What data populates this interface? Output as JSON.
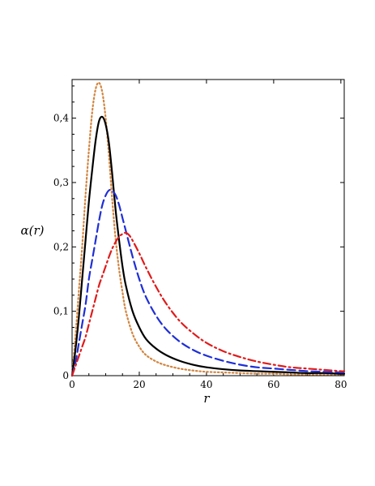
{
  "chart_data": {
    "type": "line",
    "xlabel": "r",
    "ylabel": "α(r)",
    "xlim": [
      0,
      81
    ],
    "ylim": [
      0,
      0.46
    ],
    "grid": false,
    "legend": "none",
    "x_ticks": [
      {
        "value": 0,
        "label": "0"
      },
      {
        "value": 20,
        "label": "20"
      },
      {
        "value": 40,
        "label": "40"
      },
      {
        "value": 60,
        "label": "60"
      },
      {
        "value": 80,
        "label": "80"
      }
    ],
    "y_ticks": [
      {
        "value": 0,
        "label": "0"
      },
      {
        "value": 0.1,
        "label": "0,1"
      },
      {
        "value": 0.2,
        "label": "0,2"
      },
      {
        "value": 0.3,
        "label": "0,3"
      },
      {
        "value": 0.4,
        "label": "0,4"
      }
    ],
    "series": [
      {
        "color": "#d2853f",
        "style": "dotted",
        "x": [
          0,
          1,
          2,
          3,
          4,
          5,
          6,
          7,
          8,
          9,
          10,
          11,
          12,
          13,
          14,
          15,
          16,
          18,
          20,
          22,
          25,
          28,
          32,
          36,
          40,
          45,
          50,
          55,
          60,
          65,
          70,
          75,
          80,
          81
        ],
        "y": [
          0,
          0.06,
          0.13,
          0.2,
          0.28,
          0.35,
          0.41,
          0.445,
          0.455,
          0.44,
          0.4,
          0.34,
          0.27,
          0.21,
          0.165,
          0.13,
          0.1,
          0.065,
          0.045,
          0.032,
          0.022,
          0.016,
          0.011,
          0.008,
          0.006,
          0.005,
          0.004,
          0.003,
          0.003,
          0.002,
          0.002,
          0.002,
          0.002,
          0.002
        ]
      },
      {
        "color": "#000000",
        "style": "solid",
        "x": [
          0,
          1,
          2,
          3,
          4,
          5,
          6,
          7,
          8,
          9,
          10,
          11,
          12,
          13,
          14,
          15,
          16,
          18,
          20,
          22,
          25,
          28,
          32,
          36,
          40,
          45,
          50,
          55,
          60,
          65,
          70,
          75,
          80,
          81
        ],
        "y": [
          0,
          0.04,
          0.09,
          0.15,
          0.21,
          0.27,
          0.32,
          0.365,
          0.395,
          0.402,
          0.39,
          0.36,
          0.31,
          0.255,
          0.21,
          0.17,
          0.14,
          0.1,
          0.075,
          0.057,
          0.042,
          0.032,
          0.023,
          0.017,
          0.013,
          0.01,
          0.008,
          0.007,
          0.006,
          0.005,
          0.004,
          0.004,
          0.003,
          0.003
        ]
      },
      {
        "color": "#1f2fd6",
        "style": "dashed",
        "x": [
          0,
          1,
          2,
          3,
          4,
          5,
          6,
          7,
          8,
          9,
          10,
          11,
          12,
          13,
          14,
          15,
          16,
          18,
          20,
          22,
          25,
          28,
          32,
          36,
          40,
          45,
          50,
          55,
          60,
          65,
          70,
          75,
          80,
          81
        ],
        "y": [
          0,
          0.02,
          0.05,
          0.08,
          0.11,
          0.15,
          0.18,
          0.21,
          0.24,
          0.265,
          0.28,
          0.288,
          0.287,
          0.28,
          0.265,
          0.245,
          0.225,
          0.185,
          0.15,
          0.122,
          0.093,
          0.072,
          0.053,
          0.04,
          0.031,
          0.023,
          0.017,
          0.013,
          0.011,
          0.009,
          0.007,
          0.006,
          0.005,
          0.005
        ]
      },
      {
        "color": "#e01b1b",
        "style": "dashdot",
        "x": [
          0,
          1,
          2,
          3,
          4,
          5,
          6,
          7,
          8,
          9,
          10,
          11,
          12,
          13,
          14,
          15,
          16,
          17,
          18,
          20,
          22,
          25,
          28,
          32,
          36,
          40,
          45,
          50,
          55,
          60,
          65,
          70,
          75,
          80,
          81
        ],
        "y": [
          0,
          0.015,
          0.03,
          0.045,
          0.06,
          0.08,
          0.1,
          0.12,
          0.14,
          0.155,
          0.17,
          0.185,
          0.198,
          0.208,
          0.216,
          0.22,
          0.222,
          0.218,
          0.21,
          0.19,
          0.168,
          0.138,
          0.112,
          0.085,
          0.066,
          0.051,
          0.038,
          0.029,
          0.022,
          0.017,
          0.013,
          0.011,
          0.009,
          0.007,
          0.007
        ]
      }
    ]
  }
}
